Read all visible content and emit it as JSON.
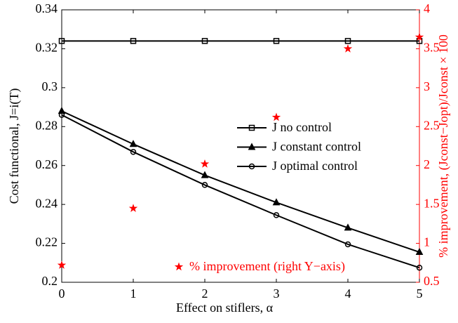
{
  "chart_data": {
    "type": "line",
    "x": [
      0,
      1,
      2,
      3,
      4,
      5
    ],
    "xlabel": "Effect on stiflers, α",
    "ylabel": "Cost functional, J=i(T)",
    "y2label": "% improvement, (Jconst−Jopt)/Jconst × 100",
    "xlim": [
      0,
      5
    ],
    "xticks": [
      0,
      1,
      2,
      3,
      4,
      5
    ],
    "ylim": [
      0.2,
      0.34
    ],
    "yticks": [
      0.2,
      0.22,
      0.24,
      0.26,
      0.28,
      0.3,
      0.32,
      0.34
    ],
    "y2lim": [
      0.5,
      4
    ],
    "y2ticks": [
      0.5,
      1,
      1.5,
      2,
      2.5,
      3,
      3.5,
      4
    ],
    "series": [
      {
        "name": "J no control",
        "color": "#000000",
        "marker": "square",
        "values": [
          0.324,
          0.324,
          0.324,
          0.324,
          0.324,
          0.324
        ]
      },
      {
        "name": "J constant control",
        "color": "#000000",
        "marker": "triangle",
        "values": [
          0.288,
          0.271,
          0.255,
          0.241,
          0.228,
          0.2155
        ]
      },
      {
        "name": "J optimal control",
        "color": "#000000",
        "marker": "circle",
        "values": [
          0.286,
          0.267,
          0.25,
          0.2345,
          0.2195,
          0.2075
        ]
      },
      {
        "name": "% improvement (right Y−axis)",
        "color": "#ff0000",
        "marker": "star",
        "axis": "y2",
        "values": [
          0.72,
          1.45,
          2.02,
          2.62,
          3.5,
          3.65
        ]
      }
    ]
  }
}
